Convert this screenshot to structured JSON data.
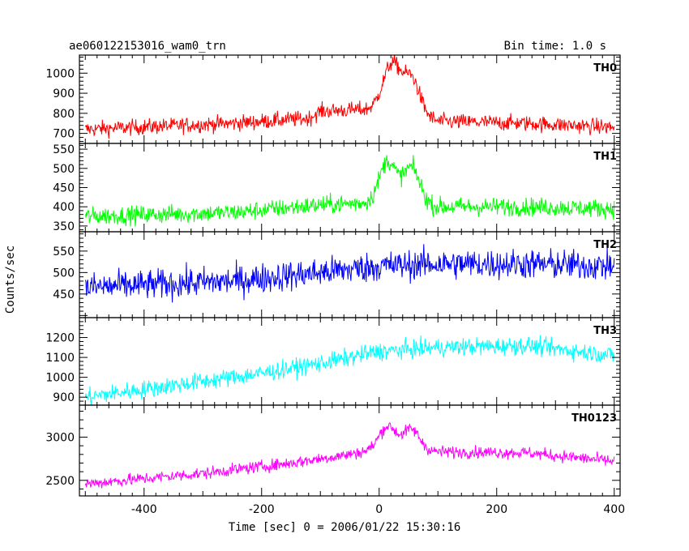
{
  "chart_data": {
    "type": "line",
    "title_left": "ae060122153016_wam0_trn",
    "title_right": "Bin time: 1.0 s",
    "xlabel": "Time [sec] 0 = 2006/01/22 15:30:16",
    "ylabel": "Counts/sec",
    "xlim": [
      -510,
      410
    ],
    "x_ticks": [
      -400,
      -200,
      0,
      200,
      400
    ],
    "grid": false,
    "panels": [
      {
        "name": "TH0",
        "color": "#ff0000",
        "ylim": [
          650,
          1090
        ],
        "y_ticks": [
          700,
          800,
          900,
          1000
        ],
        "baseline": [
          [
            -500,
            720
          ],
          [
            -250,
            750
          ],
          [
            -120,
            775
          ],
          [
            -100,
            810
          ],
          [
            -20,
            820
          ],
          [
            0,
            840
          ],
          [
            100,
            760
          ],
          [
            250,
            750
          ],
          [
            400,
            730
          ]
        ],
        "noise": 28,
        "bumps": [
          [
            22,
            14,
            220
          ],
          [
            55,
            14,
            180
          ]
        ]
      },
      {
        "name": "TH1",
        "color": "#00ff00",
        "ylim": [
          335,
          565
        ],
        "y_ticks": [
          350,
          400,
          450,
          500,
          550
        ],
        "baseline": [
          [
            -500,
            375
          ],
          [
            -250,
            385
          ],
          [
            -100,
            405
          ],
          [
            -20,
            410
          ],
          [
            0,
            415
          ],
          [
            100,
            400
          ],
          [
            250,
            400
          ],
          [
            400,
            395
          ]
        ],
        "noise": 17,
        "bumps": [
          [
            15,
            14,
            105
          ],
          [
            55,
            14,
            95
          ]
        ]
      },
      {
        "name": "TH2",
        "color": "#0000ff",
        "ylim": [
          395,
          595
        ],
        "y_ticks": [
          450,
          500,
          550
        ],
        "baseline": [
          [
            -500,
            465
          ],
          [
            -250,
            480
          ],
          [
            -100,
            500
          ],
          [
            0,
            515
          ],
          [
            100,
            520
          ],
          [
            250,
            520
          ],
          [
            400,
            515
          ]
        ],
        "noise": 25,
        "bumps": []
      },
      {
        "name": "TH3",
        "color": "#00ffff",
        "ylim": [
          860,
          1300
        ],
        "y_ticks": [
          900,
          1000,
          1100,
          1200
        ],
        "baseline": [
          [
            -500,
            900
          ],
          [
            -350,
            960
          ],
          [
            -200,
            1020
          ],
          [
            -100,
            1070
          ],
          [
            0,
            1130
          ],
          [
            100,
            1150
          ],
          [
            250,
            1160
          ],
          [
            400,
            1110
          ]
        ],
        "noise": 32,
        "bumps": []
      },
      {
        "name": "TH0123",
        "color": "#ff00ff",
        "ylim": [
          2320,
          3370
        ],
        "y_ticks": [
          2500,
          3000
        ],
        "baseline": [
          [
            -500,
            2460
          ],
          [
            -300,
            2580
          ],
          [
            -150,
            2700
          ],
          [
            -50,
            2800
          ],
          [
            0,
            2870
          ],
          [
            100,
            2830
          ],
          [
            250,
            2820
          ],
          [
            400,
            2720
          ]
        ],
        "noise": 50,
        "bumps": [
          [
            15,
            14,
            260
          ],
          [
            55,
            14,
            240
          ]
        ]
      }
    ]
  }
}
